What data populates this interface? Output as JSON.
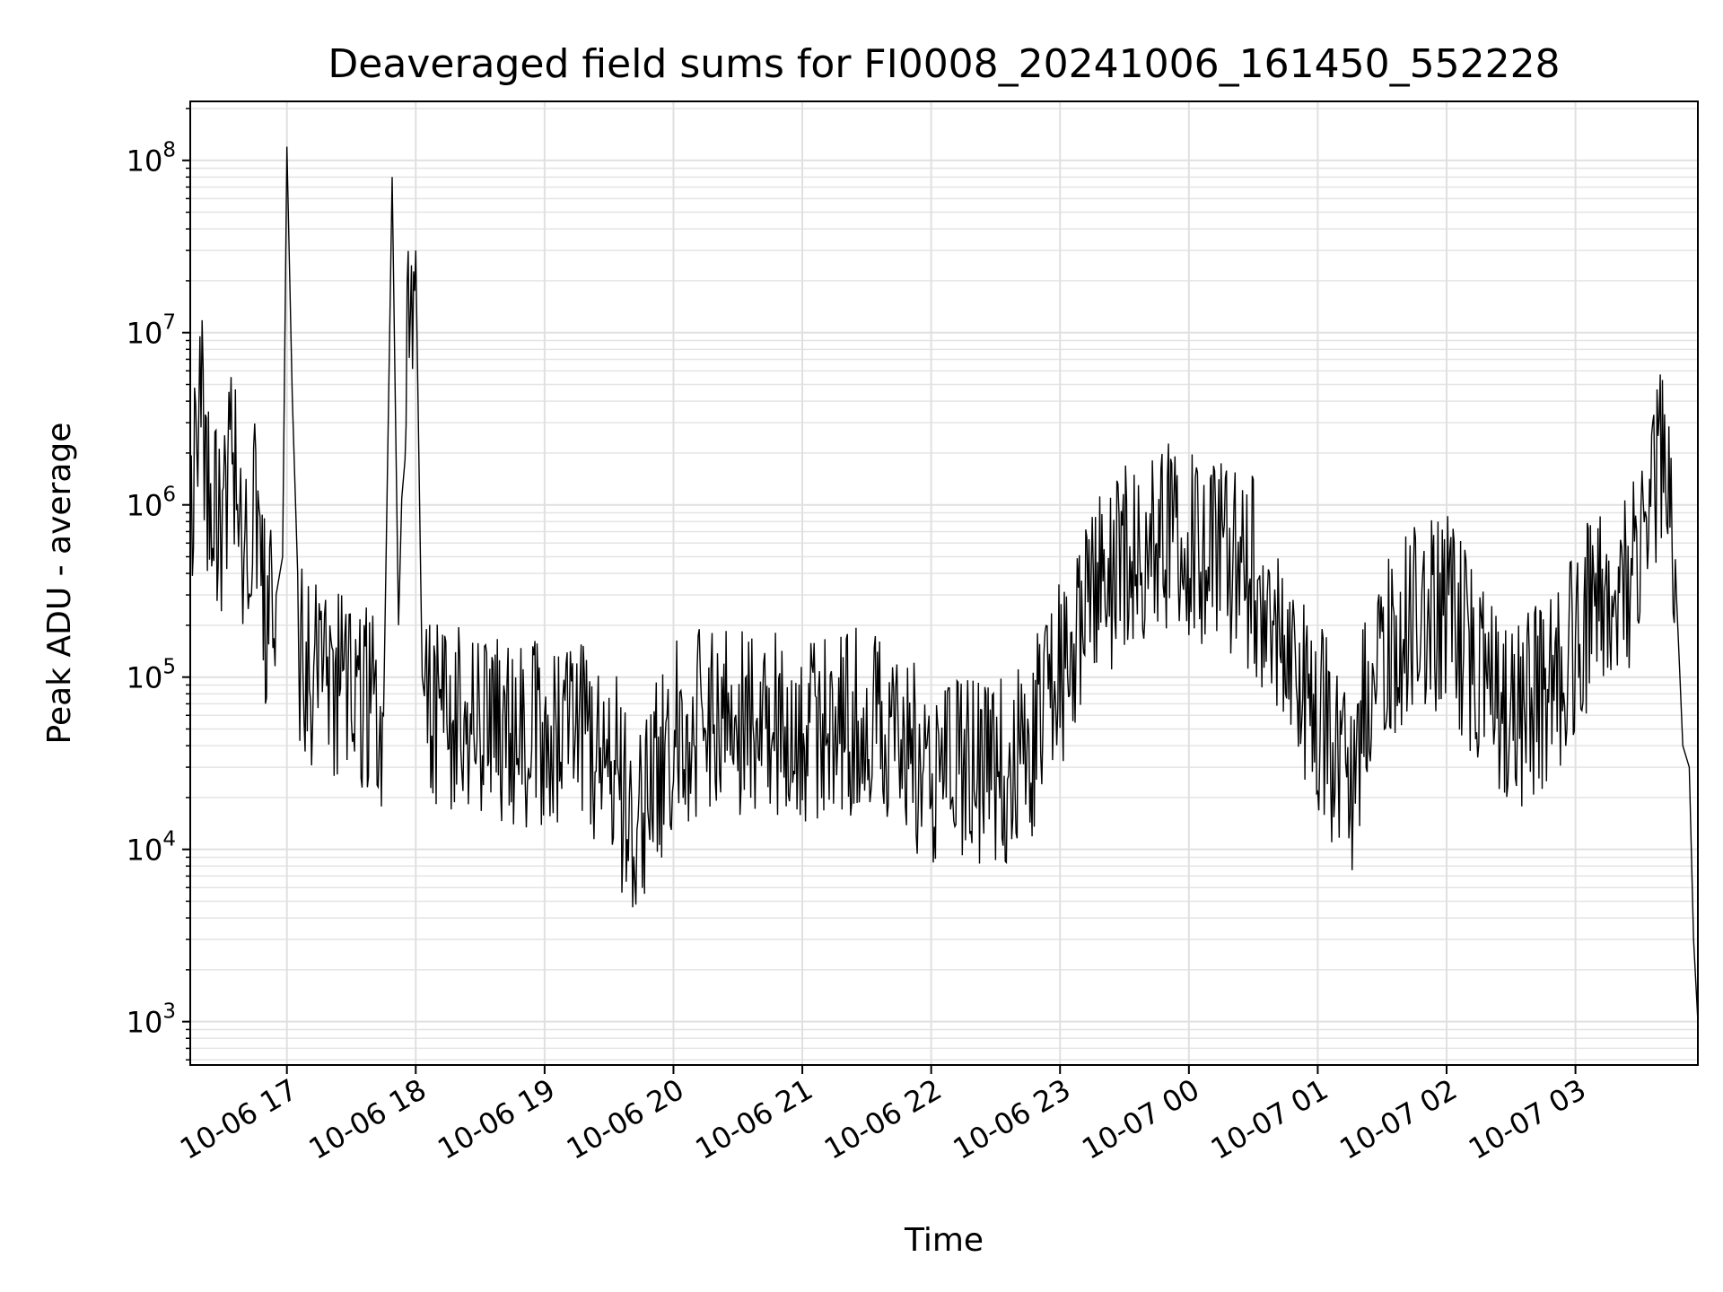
{
  "chart_data": {
    "type": "line",
    "title": "Deaveraged field sums for FI0008_20241006_161450_552228",
    "xlabel": "Time",
    "ylabel": "Peak ADU - average",
    "yscale": "log",
    "ylim": [
      560,
      220000000
    ],
    "xlim": [
      "2024-10-06 16:15",
      "2024-10-07 03:57"
    ],
    "grid": true,
    "line_color": "#000000",
    "x_ticks": [
      {
        "t": "2024-10-06 17:00",
        "label": "10-06 17"
      },
      {
        "t": "2024-10-06 18:00",
        "label": "10-06 18"
      },
      {
        "t": "2024-10-06 19:00",
        "label": "10-06 19"
      },
      {
        "t": "2024-10-06 20:00",
        "label": "10-06 20"
      },
      {
        "t": "2024-10-06 21:00",
        "label": "10-06 21"
      },
      {
        "t": "2024-10-06 22:00",
        "label": "10-06 22"
      },
      {
        "t": "2024-10-06 23:00",
        "label": "10-06 23"
      },
      {
        "t": "2024-10-07 00:00",
        "label": "10-07 00"
      },
      {
        "t": "2024-10-07 01:00",
        "label": "10-07 01"
      },
      {
        "t": "2024-10-07 02:00",
        "label": "10-07 02"
      },
      {
        "t": "2024-10-07 03:00",
        "label": "10-07 03"
      }
    ],
    "y_ticks": [
      {
        "value": 1000,
        "base": "10",
        "exp": "3"
      },
      {
        "value": 10000,
        "base": "10",
        "exp": "4"
      },
      {
        "value": 100000,
        "base": "10",
        "exp": "5"
      },
      {
        "value": 1000000,
        "base": "10",
        "exp": "6"
      },
      {
        "value": 10000000,
        "base": "10",
        "exp": "7"
      },
      {
        "value": 100000000,
        "base": "10",
        "exp": "8"
      }
    ],
    "series": [
      {
        "x": [
          "2024-10-06 16:15",
          "2024-10-06 16:20",
          "2024-10-06 16:25",
          "2024-10-06 16:30",
          "2024-10-06 16:35",
          "2024-10-06 16:40",
          "2024-10-06 16:45",
          "2024-10-06 16:50",
          "2024-10-06 16:55",
          "2024-10-06 16:58",
          "2024-10-06 17:00",
          "2024-10-06 17:05",
          "2024-10-06 17:15",
          "2024-10-06 17:30",
          "2024-10-06 17:45",
          "2024-10-06 17:49",
          "2024-10-06 17:52",
          "2024-10-06 17:55",
          "2024-10-06 18:00",
          "2024-10-06 18:03",
          "2024-10-06 18:05",
          "2024-10-06 18:15",
          "2024-10-06 18:30",
          "2024-10-06 18:45",
          "2024-10-06 19:00",
          "2024-10-06 19:30",
          "2024-10-06 19:42",
          "2024-10-06 20:00",
          "2024-10-06 20:30",
          "2024-10-06 21:00",
          "2024-10-06 21:30",
          "2024-10-06 21:45",
          "2024-10-06 22:00",
          "2024-10-06 22:30",
          "2024-10-06 22:45",
          "2024-10-06 22:55",
          "2024-10-06 23:15",
          "2024-10-06 23:30",
          "2024-10-06 23:45",
          "2024-10-07 00:00",
          "2024-10-07 00:15",
          "2024-10-07 00:30",
          "2024-10-07 00:45",
          "2024-10-07 00:55",
          "2024-10-07 01:15",
          "2024-10-07 01:30",
          "2024-10-07 01:45",
          "2024-10-07 02:00",
          "2024-10-07 02:15",
          "2024-10-07 02:30",
          "2024-10-07 02:45",
          "2024-10-07 03:00",
          "2024-10-07 03:15",
          "2024-10-07 03:30",
          "2024-10-07 03:42",
          "2024-10-07 03:47",
          "2024-10-07 03:50",
          "2024-10-07 03:53",
          "2024-10-07 03:55",
          "2024-10-07 03:57"
        ],
        "y": [
          900000,
          4000000,
          700000,
          800000,
          2500000,
          600000,
          900000,
          200000,
          300000,
          500000,
          120000000,
          150000,
          100000,
          80000,
          60000,
          80000000,
          200000,
          6000000,
          30000000,
          100000,
          60000,
          50000,
          60000,
          50000,
          50000,
          40000,
          10500,
          50000,
          60000,
          50000,
          60000,
          40000,
          30000,
          25000,
          40000,
          70000,
          300000,
          500000,
          700000,
          600000,
          500000,
          400000,
          150000,
          80000,
          25000,
          150000,
          200000,
          250000,
          100000,
          60000,
          80000,
          150000,
          400000,
          400000,
          2300000,
          300000,
          40000,
          30000,
          3000,
          1000
        ]
      }
    ]
  }
}
